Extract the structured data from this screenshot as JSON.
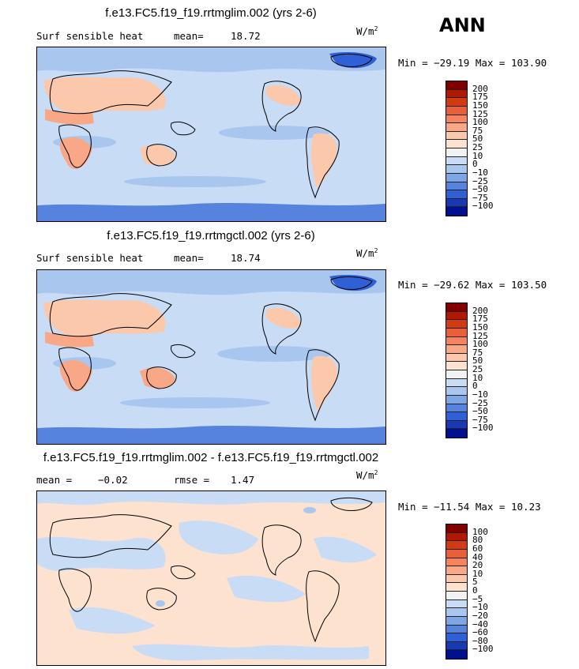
{
  "season": "ANN",
  "units": {
    "base": "W/m",
    "exp": "2"
  },
  "panels": [
    {
      "title": "f.e13.FC5.f19_f19.rrtmglim.002 (yrs 2-6)",
      "left_label": "Surf sensible heat",
      "stat_label": "mean=",
      "stat_value": "18.72",
      "minmax": "Min = −29.19 Max = 103.90",
      "background_color": "#c9dcf5",
      "colorbar": {
        "labels": [
          "200",
          "175",
          "150",
          "125",
          "100",
          "75",
          "50",
          "25",
          "10",
          "0",
          "−10",
          "−25",
          "−50",
          "−75",
          "−100"
        ],
        "colors": [
          "#800000",
          "#b01800",
          "#d23a10",
          "#e8603a",
          "#f5845e",
          "#f8a886",
          "#fbc8ac",
          "#fde2d0",
          "#f2f2f2",
          "#c9dcf5",
          "#a9c6ee",
          "#7ea6e6",
          "#5683de",
          "#3060d6",
          "#1838b4",
          "#001090"
        ]
      }
    },
    {
      "title": "f.e13.FC5.f19_f19.rrtmgctl.002 (yrs 2-6)",
      "left_label": "Surf sensible heat",
      "stat_label": "mean=",
      "stat_value": "18.74",
      "minmax": "Min = −29.62 Max = 103.50",
      "background_color": "#c9dcf5",
      "colorbar": {
        "labels": [
          "200",
          "175",
          "150",
          "125",
          "100",
          "75",
          "50",
          "25",
          "10",
          "0",
          "−10",
          "−25",
          "−50",
          "−75",
          "−100"
        ],
        "colors": [
          "#800000",
          "#b01800",
          "#d23a10",
          "#e8603a",
          "#f5845e",
          "#f8a886",
          "#fbc8ac",
          "#fde2d0",
          "#f2f2f2",
          "#c9dcf5",
          "#a9c6ee",
          "#7ea6e6",
          "#5683de",
          "#3060d6",
          "#1838b4",
          "#001090"
        ]
      }
    },
    {
      "title": "f.e13.FC5.f19_f19.rrtmglim.002 - f.e13.FC5.f19_f19.rrtmgctl.002",
      "left_label": "mean =",
      "left_value": "−0.02",
      "stat_label": "rmse =",
      "stat_value": "1.47",
      "minmax": "Min = −11.54 Max =  10.23",
      "background_color": "#fde2d0",
      "colorbar": {
        "labels": [
          "100",
          "80",
          "60",
          "40",
          "20",
          "10",
          "5",
          "0",
          "−5",
          "−10",
          "−20",
          "−40",
          "−60",
          "−80",
          "−100"
        ],
        "colors": [
          "#800000",
          "#b01800",
          "#d23a10",
          "#e8603a",
          "#f5845e",
          "#f8a886",
          "#fbc8ac",
          "#fde2d0",
          "#f2f2f2",
          "#c9dcf5",
          "#a9c6ee",
          "#7ea6e6",
          "#5683de",
          "#3060d6",
          "#1838b4",
          "#001090"
        ]
      }
    }
  ]
}
